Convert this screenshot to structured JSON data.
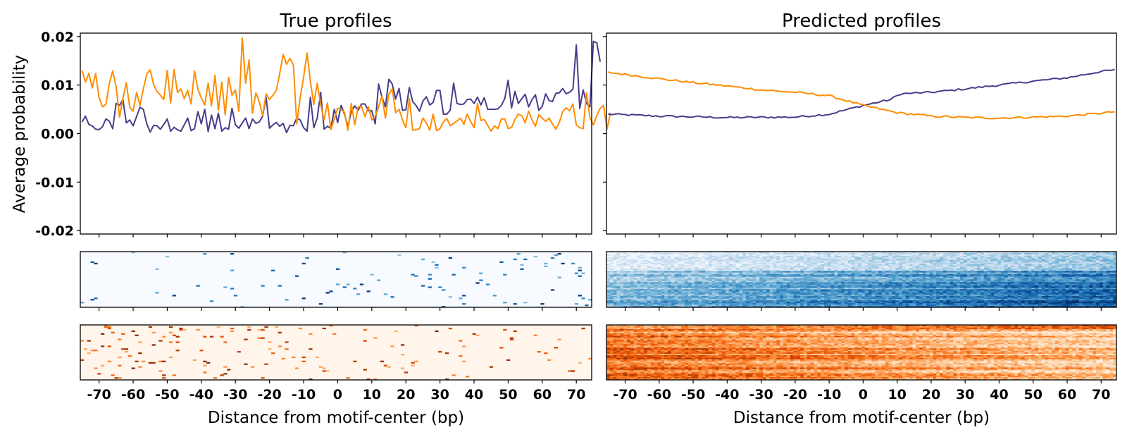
{
  "chart_data": [
    {
      "type": "line",
      "panel": "true-profiles-line",
      "title": "True profiles",
      "xlabel": "",
      "ylabel": "Average probability",
      "xlim": [
        -75.5,
        74.5
      ],
      "ylim": [
        -0.0207,
        0.0207
      ],
      "yticks": [
        0.02,
        0.01,
        0.0,
        -0.01,
        -0.02
      ],
      "ytick_labels": [
        "0.02",
        "0.01",
        "0.00",
        "-0.01",
        "-0.02"
      ],
      "xticks": [
        -70,
        -60,
        -50,
        -40,
        -30,
        -20,
        -10,
        0,
        10,
        20,
        30,
        40,
        50,
        60,
        70
      ],
      "grid": false,
      "x_start": -75,
      "series": [
        {
          "name": "strand-1",
          "color": "#483d8b",
          "values": [
            0.0024,
            0.0036,
            0.0019,
            0.0016,
            0.0009,
            0.0008,
            0.0014,
            0.003,
            0.0026,
            0.001,
            0.0062,
            0.0058,
            0.007,
            0.0022,
            0.0028,
            0.0016,
            0.0035,
            0.0054,
            0.005,
            0.002,
            0.0003,
            0.0017,
            0.0016,
            0.0009,
            0.0019,
            0.003,
            0.0005,
            0.0013,
            0.0008,
            0.0005,
            0.0018,
            0.0032,
            0.0006,
            0.001,
            0.0045,
            0.002,
            0.005,
            0.0004,
            0.0038,
            0.001,
            0.0042,
            0.0005,
            0.0012,
            0.0009,
            0.0052,
            0.0018,
            0.0011,
            0.0022,
            0.0032,
            0.001,
            0.003,
            0.0021,
            0.0024,
            0.0036,
            0.0075,
            0.0011,
            0.0018,
            0.0023,
            0.0015,
            0.0021,
            0.0002,
            0.0017,
            0.0016,
            0.0032,
            0.0028,
            0.0012,
            0.0005,
            0.0075,
            0.0012,
            0.0032,
            0.0085,
            0.0009,
            0.0015,
            0.0011,
            0.005,
            0.0023,
            0.0058,
            0.004,
            0.0015,
            0.0045,
            0.0057,
            0.0048,
            0.0061,
            0.0061,
            0.0047,
            0.0047,
            0.002,
            0.0102,
            0.0075,
            0.0055,
            0.0112,
            0.0102,
            0.0071,
            0.0093,
            0.0048,
            0.0049,
            0.0095,
            0.0066,
            0.0058,
            0.0046,
            0.0067,
            0.0076,
            0.0059,
            0.0064,
            0.0089,
            0.0089,
            0.004,
            0.004,
            0.0048,
            0.0104,
            0.0062,
            0.006,
            0.0061,
            0.007,
            0.0071,
            0.0062,
            0.0075,
            0.0059,
            0.0074,
            0.005,
            0.005,
            0.005,
            0.0051,
            0.0058,
            0.0072,
            0.011,
            0.0053,
            0.0087,
            0.0062,
            0.0072,
            0.0081,
            0.0055,
            0.007,
            0.008,
            0.0048,
            0.0056,
            0.0082,
            0.0068,
            0.0066,
            0.0083,
            0.0084,
            0.0093,
            0.0082,
            0.0085,
            0.0092,
            0.0183,
            0.0052,
            0.009,
            0.0062,
            0.0055,
            0.019,
            0.0187,
            0.0148
          ]
        },
        {
          "name": "strand-2",
          "color": "#ff8c00",
          "values": [
            0.013,
            0.0106,
            0.0124,
            0.0094,
            0.0124,
            0.0074,
            0.0055,
            0.006,
            0.0103,
            0.0129,
            0.0097,
            0.0034,
            0.0072,
            0.0105,
            0.0054,
            0.0046,
            0.0085,
            0.0058,
            0.0092,
            0.0123,
            0.0131,
            0.0101,
            0.0087,
            0.0079,
            0.007,
            0.013,
            0.0063,
            0.0132,
            0.0085,
            0.0092,
            0.0072,
            0.0089,
            0.0061,
            0.0129,
            0.0091,
            0.0073,
            0.0059,
            0.0104,
            0.0057,
            0.012,
            0.0048,
            0.0106,
            0.0038,
            0.0116,
            0.0079,
            0.009,
            0.0046,
            0.0197,
            0.0104,
            0.0152,
            0.0042,
            0.0084,
            0.0066,
            0.0037,
            0.0082,
            0.007,
            0.0079,
            0.0089,
            0.0124,
            0.0163,
            0.0143,
            0.0155,
            0.0141,
            0.002,
            0.0075,
            0.0116,
            0.0166,
            0.0107,
            0.006,
            0.0104,
            0.006,
            0.0028,
            0.0063,
            0.0008,
            0.0031,
            0.0052,
            0.005,
            0.0044,
            0.0007,
            0.0062,
            0.0018,
            0.0055,
            0.0056,
            0.0035,
            0.0055,
            0.0028,
            0.0036,
            0.0055,
            0.0077,
            0.0032,
            0.0081,
            0.0092,
            0.0043,
            0.005,
            0.0028,
            0.0012,
            0.0072,
            0.0007,
            0.0008,
            0.001,
            0.0032,
            0.0022,
            0.0007,
            0.004,
            0.0006,
            0.001,
            0.0024,
            0.0031,
            0.0016,
            0.0021,
            0.0026,
            0.0032,
            0.0019,
            0.004,
            0.0025,
            0.0012,
            0.0062,
            0.0027,
            0.0029,
            0.0017,
            0.0005,
            0.0016,
            0.001,
            0.003,
            0.003,
            0.001,
            0.0013,
            0.0029,
            0.004,
            0.0037,
            0.0022,
            0.0046,
            0.0028,
            0.0015,
            0.0039,
            0.0032,
            0.0025,
            0.0032,
            0.002,
            0.0009,
            0.0023,
            0.0045,
            0.0053,
            0.0047,
            0.0061,
            0.0018,
            0.0012,
            0.001,
            0.0084,
            0.0032,
            0.0018,
            0.0037,
            0.0052,
            0.0058,
            0.0009,
            0.0043
          ]
        }
      ]
    },
    {
      "type": "line",
      "panel": "predicted-profiles-line",
      "title": "Predicted profiles",
      "xlabel": "",
      "ylabel": "",
      "xlim": [
        -75.5,
        74.5
      ],
      "ylim": [
        -0.0207,
        0.0207
      ],
      "yticks": [
        0.02,
        0.01,
        0.0,
        -0.01,
        -0.02
      ],
      "ytick_labels": [],
      "xticks": [
        -70,
        -60,
        -50,
        -40,
        -30,
        -20,
        -10,
        0,
        10,
        20,
        30,
        40,
        50,
        60,
        70
      ],
      "grid": false,
      "x_start": -75,
      "series": [
        {
          "name": "strand-1",
          "color": "#483d8b",
          "start": 0.004,
          "knots": [
            [
              -75,
              0.004
            ],
            [
              -60,
              0.0036
            ],
            [
              -40,
              0.0033
            ],
            [
              -20,
              0.0034
            ],
            [
              -10,
              0.004
            ],
            [
              0,
              0.0058
            ],
            [
              8,
              0.007
            ],
            [
              11,
              0.0082
            ],
            [
              20,
              0.0085
            ],
            [
              30,
              0.0092
            ],
            [
              40,
              0.01
            ],
            [
              50,
              0.0108
            ],
            [
              60,
              0.0115
            ],
            [
              70,
              0.0128
            ],
            [
              74,
              0.0131
            ]
          ]
        },
        {
          "name": "strand-2",
          "color": "#ff8c00",
          "knots": [
            [
              -75,
              0.0126
            ],
            [
              -70,
              0.0122
            ],
            [
              -60,
              0.0113
            ],
            [
              -50,
              0.0105
            ],
            [
              -40,
              0.0098
            ],
            [
              -30,
              0.009
            ],
            [
              -20,
              0.0085
            ],
            [
              -10,
              0.0078
            ],
            [
              0,
              0.0058
            ],
            [
              10,
              0.0043
            ],
            [
              20,
              0.0036
            ],
            [
              30,
              0.0033
            ],
            [
              40,
              0.0032
            ],
            [
              50,
              0.0034
            ],
            [
              60,
              0.0036
            ],
            [
              70,
              0.0042
            ],
            [
              74,
              0.0045
            ]
          ]
        }
      ]
    },
    {
      "type": "heatmap",
      "panel": "true-profiles-heatmap-strand-1",
      "colormap": "Blues",
      "xlim": [
        -75.5,
        74.5
      ],
      "rows": 40,
      "description": "sparse per-region counts, mostly near zero with scattered high values, denser on the right"
    },
    {
      "type": "heatmap",
      "panel": "predicted-profiles-heatmap-strand-1",
      "colormap": "Blues",
      "xlim": [
        -75.5,
        74.5
      ],
      "rows": 40,
      "description": "dense predicted probabilities increasing from left to right and toward the bottom rows"
    },
    {
      "type": "heatmap",
      "panel": "true-profiles-heatmap-strand-2",
      "colormap": "Oranges",
      "xlim": [
        -75.5,
        74.5
      ],
      "rows": 40,
      "description": "sparse per-region counts, denser on the left"
    },
    {
      "type": "heatmap",
      "panel": "predicted-profiles-heatmap-strand-2",
      "colormap": "Oranges",
      "xlim": [
        -75.5,
        74.5
      ],
      "rows": 40,
      "description": "dense predicted probabilities decreasing from left to right"
    }
  ],
  "labels": {
    "title_left": "True profiles",
    "title_right": "Predicted profiles",
    "ylabel": "Average probability",
    "xlabel_left": "Distance from motif-center (bp)",
    "xlabel_right": "Distance from motif-center (bp)"
  },
  "xtick_labels": [
    "-70",
    "-60",
    "-50",
    "-40",
    "-30",
    "-20",
    "-10",
    "0",
    "10",
    "20",
    "30",
    "40",
    "50",
    "60",
    "70"
  ],
  "ytick_labels": [
    "0.02",
    "0.01",
    "0.00",
    "-0.01",
    "-0.02"
  ]
}
